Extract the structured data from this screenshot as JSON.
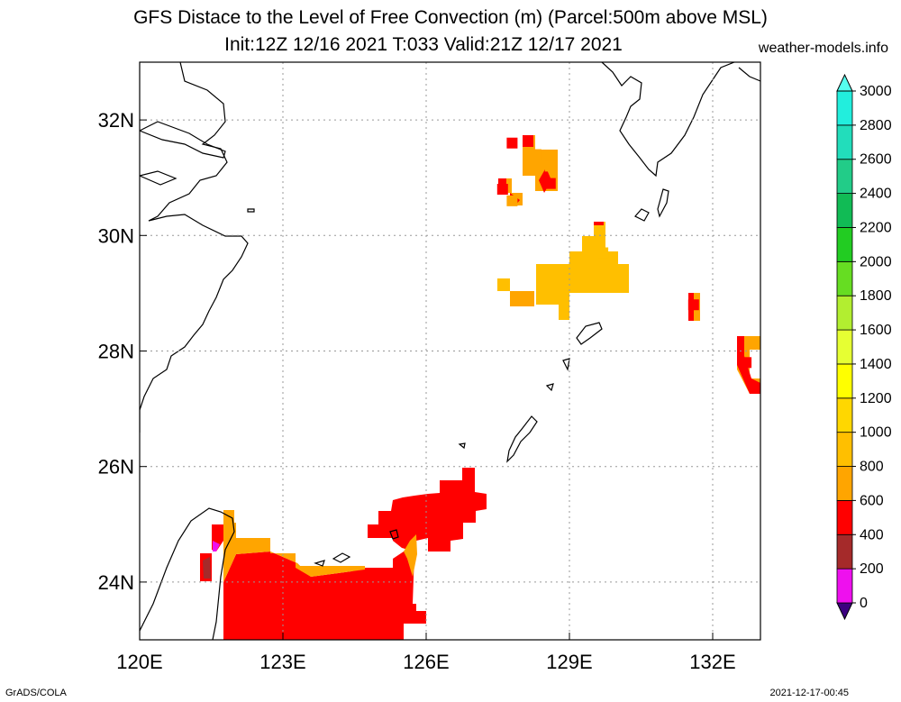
{
  "title_line1": "GFS Distace to the Level of Free Convection (m) (Parcel:500m above MSL)",
  "title_line2": "Init:12Z 12/16 2021 T:033 Valid:21Z 12/17 2021",
  "site": "weather-models.info",
  "footer_left": "GrADS/COLA",
  "footer_right": "2021-12-17-00:45",
  "map": {
    "lon_range": [
      120,
      133
    ],
    "lat_range": [
      23,
      33
    ],
    "lon_ticks": [
      {
        "value": 120,
        "label": "120E"
      },
      {
        "value": 123,
        "label": "123E"
      },
      {
        "value": 126,
        "label": "126E"
      },
      {
        "value": 129,
        "label": "129E"
      },
      {
        "value": 132,
        "label": "132E"
      }
    ],
    "lat_ticks": [
      {
        "value": 24,
        "label": "24N"
      },
      {
        "value": 26,
        "label": "26N"
      },
      {
        "value": 28,
        "label": "28N"
      },
      {
        "value": 30,
        "label": "30N"
      },
      {
        "value": 32,
        "label": "32N"
      }
    ],
    "grid": true
  },
  "colorbar": {
    "levels": [
      0,
      200,
      400,
      600,
      800,
      1000,
      1200,
      1400,
      1600,
      1800,
      2000,
      2200,
      2400,
      2600,
      2800,
      3000
    ],
    "labels": [
      "0",
      "200",
      "400",
      "600",
      "800",
      "1000",
      "1200",
      "1400",
      "1600",
      "1800",
      "2000",
      "2200",
      "2400",
      "2600",
      "2800",
      "3000"
    ],
    "colors": [
      "#3c0080",
      "#ee10ee",
      "#a52a2a",
      "#ff0000",
      "#ffa500",
      "#ffbf00",
      "#ffd700",
      "#ffff00",
      "#e6ff33",
      "#b2ee30",
      "#66dd22",
      "#22cc22",
      "#11bb55",
      "#22cc88",
      "#22ddbb",
      "#22eedd",
      "#55ffee"
    ]
  },
  "field_cells": [
    {
      "lon": 127.8,
      "lat": 31.6,
      "color": "#ff0000"
    },
    {
      "lon": 128.3,
      "lat": 31.4,
      "color": "#ffa500"
    },
    {
      "lon": 128.6,
      "lat": 31.2,
      "color": "#ffa500"
    },
    {
      "lon": 128.6,
      "lat": 30.9,
      "color": "#ff0000"
    },
    {
      "lon": 127.6,
      "lat": 30.8,
      "color": "#ff0000"
    },
    {
      "lon": 127.8,
      "lat": 30.6,
      "color": "#ffa500"
    },
    {
      "lon": 129.7,
      "lat": 29.7,
      "color": "#ffbf00"
    },
    {
      "lon": 131.6,
      "lat": 28.8,
      "color": "#ff0000"
    },
    {
      "lon": 132.7,
      "lat": 27.8,
      "color": "#ff0000"
    }
  ]
}
